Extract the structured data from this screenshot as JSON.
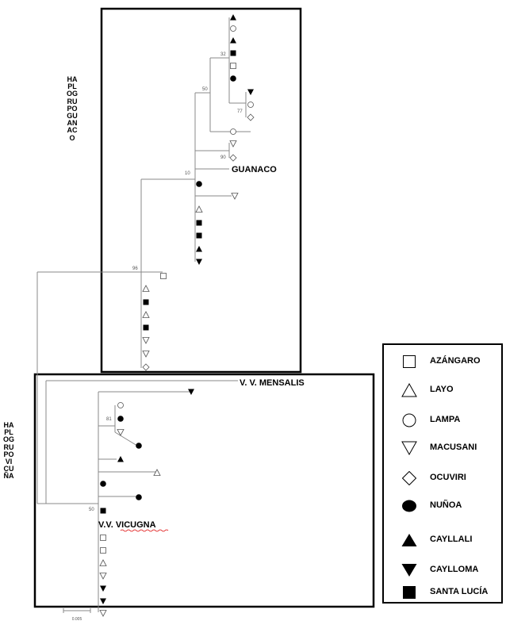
{
  "haplogroup_guanaco_label": "HAPLOGRUPO GUANACO",
  "haplogroup_vicuna_label": "HAPLOGRUPO VICUÑA",
  "clade_labels": {
    "guanaco": "GUANACO",
    "mensalis": "V. V. MENSALIS",
    "vicugna": "V.V. VICUGNA"
  },
  "bootstrap_values": {
    "b32": "32",
    "b50a": "50",
    "b77": "77",
    "b90": "90",
    "b10": "10",
    "b96": "96",
    "b81": "81",
    "b50b": "50"
  },
  "scale_bar_label": "0.005",
  "legend": [
    {
      "symbol": "open-square",
      "label": "AZÁNGARO"
    },
    {
      "symbol": "open-triangle-up",
      "label": "LAYO"
    },
    {
      "symbol": "open-circle",
      "label": "LAMPA"
    },
    {
      "symbol": "open-triangle-down",
      "label": "MACUSANI"
    },
    {
      "symbol": "open-diamond",
      "label": "OCUVIRI"
    },
    {
      "symbol": "filled-circle",
      "label": "NUÑOA"
    },
    {
      "symbol": "filled-triangle-up",
      "label": "CAYLLALI"
    },
    {
      "symbol": "filled-triangle-down",
      "label": "CAYLLOMA"
    },
    {
      "symbol": "filled-square",
      "label": "SANTA LUCÍA"
    }
  ]
}
